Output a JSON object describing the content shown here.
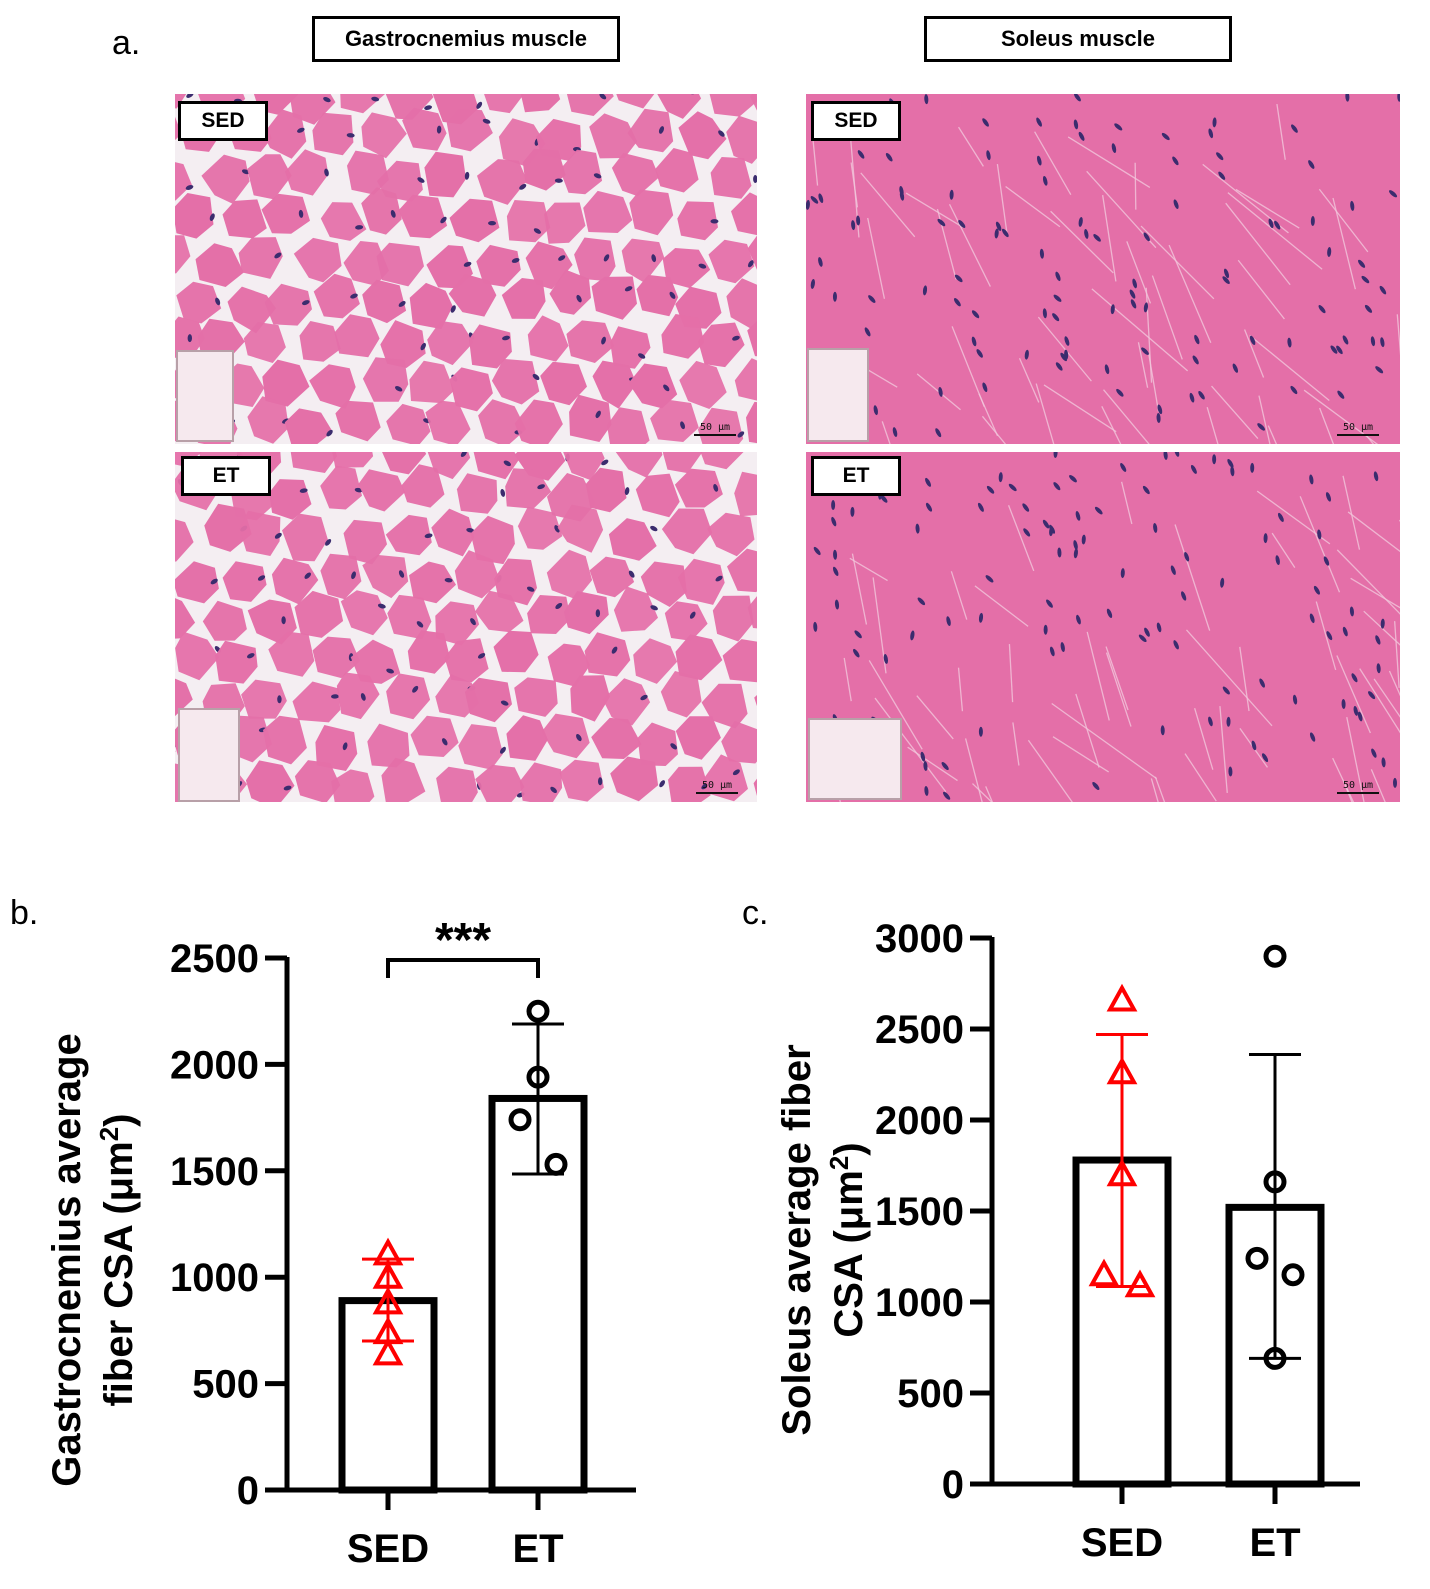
{
  "figure": {
    "panel_a": {
      "letter": "a.",
      "columns": [
        {
          "title": "Gastrocnemius muscle"
        },
        {
          "title": "Soleus muscle"
        }
      ],
      "row_tags": [
        "SED",
        "ET"
      ],
      "scale_label": "50 μm"
    },
    "panel_b_letter": "b.",
    "panel_c_letter": "c.",
    "colors": {
      "sed": "#ff0000",
      "et": "#000000",
      "tissue": "#e46fa8",
      "membrane": "#f4eef2",
      "nucleus": "#3b2c6e"
    }
  },
  "chart_data": [
    {
      "id": "b",
      "type": "bar",
      "categories": [
        "SED",
        "ET"
      ],
      "values": [
        890,
        1840
      ],
      "error": [
        [
          700,
          1085
        ],
        [
          1485,
          2190
        ]
      ],
      "points": [
        [
          1110,
          1000,
          880,
          740,
          640
        ],
        [
          2250,
          1940,
          1740,
          1530
        ]
      ],
      "point_markers": [
        "triangle",
        "circle"
      ],
      "ylabel_line1": "Gastrocnemius average",
      "ylabel_line2": "fiber CSA (μm",
      "ylabel_sup": "2",
      "ylabel_tail": ")",
      "ylim": [
        0,
        2500
      ],
      "yticks": [
        0,
        500,
        1000,
        1500,
        2000,
        2500
      ],
      "significance": "***"
    },
    {
      "id": "c",
      "type": "bar",
      "categories": [
        "SED",
        "ET"
      ],
      "values": [
        1780,
        1520
      ],
      "error": [
        [
          1085,
          2470
        ],
        [
          690,
          2360
        ]
      ],
      "points": [
        [
          2660,
          2260,
          1700,
          1150,
          1090
        ],
        [
          2900,
          1660,
          1240,
          1150,
          690
        ]
      ],
      "point_markers": [
        "triangle",
        "circle"
      ],
      "ylabel_line1": "Soleus average fiber",
      "ylabel_line2": "CSA (μm",
      "ylabel_sup": "2",
      "ylabel_tail": ")",
      "ylim": [
        0,
        3000
      ],
      "yticks": [
        0,
        500,
        1000,
        1500,
        2000,
        2500,
        3000
      ]
    }
  ]
}
